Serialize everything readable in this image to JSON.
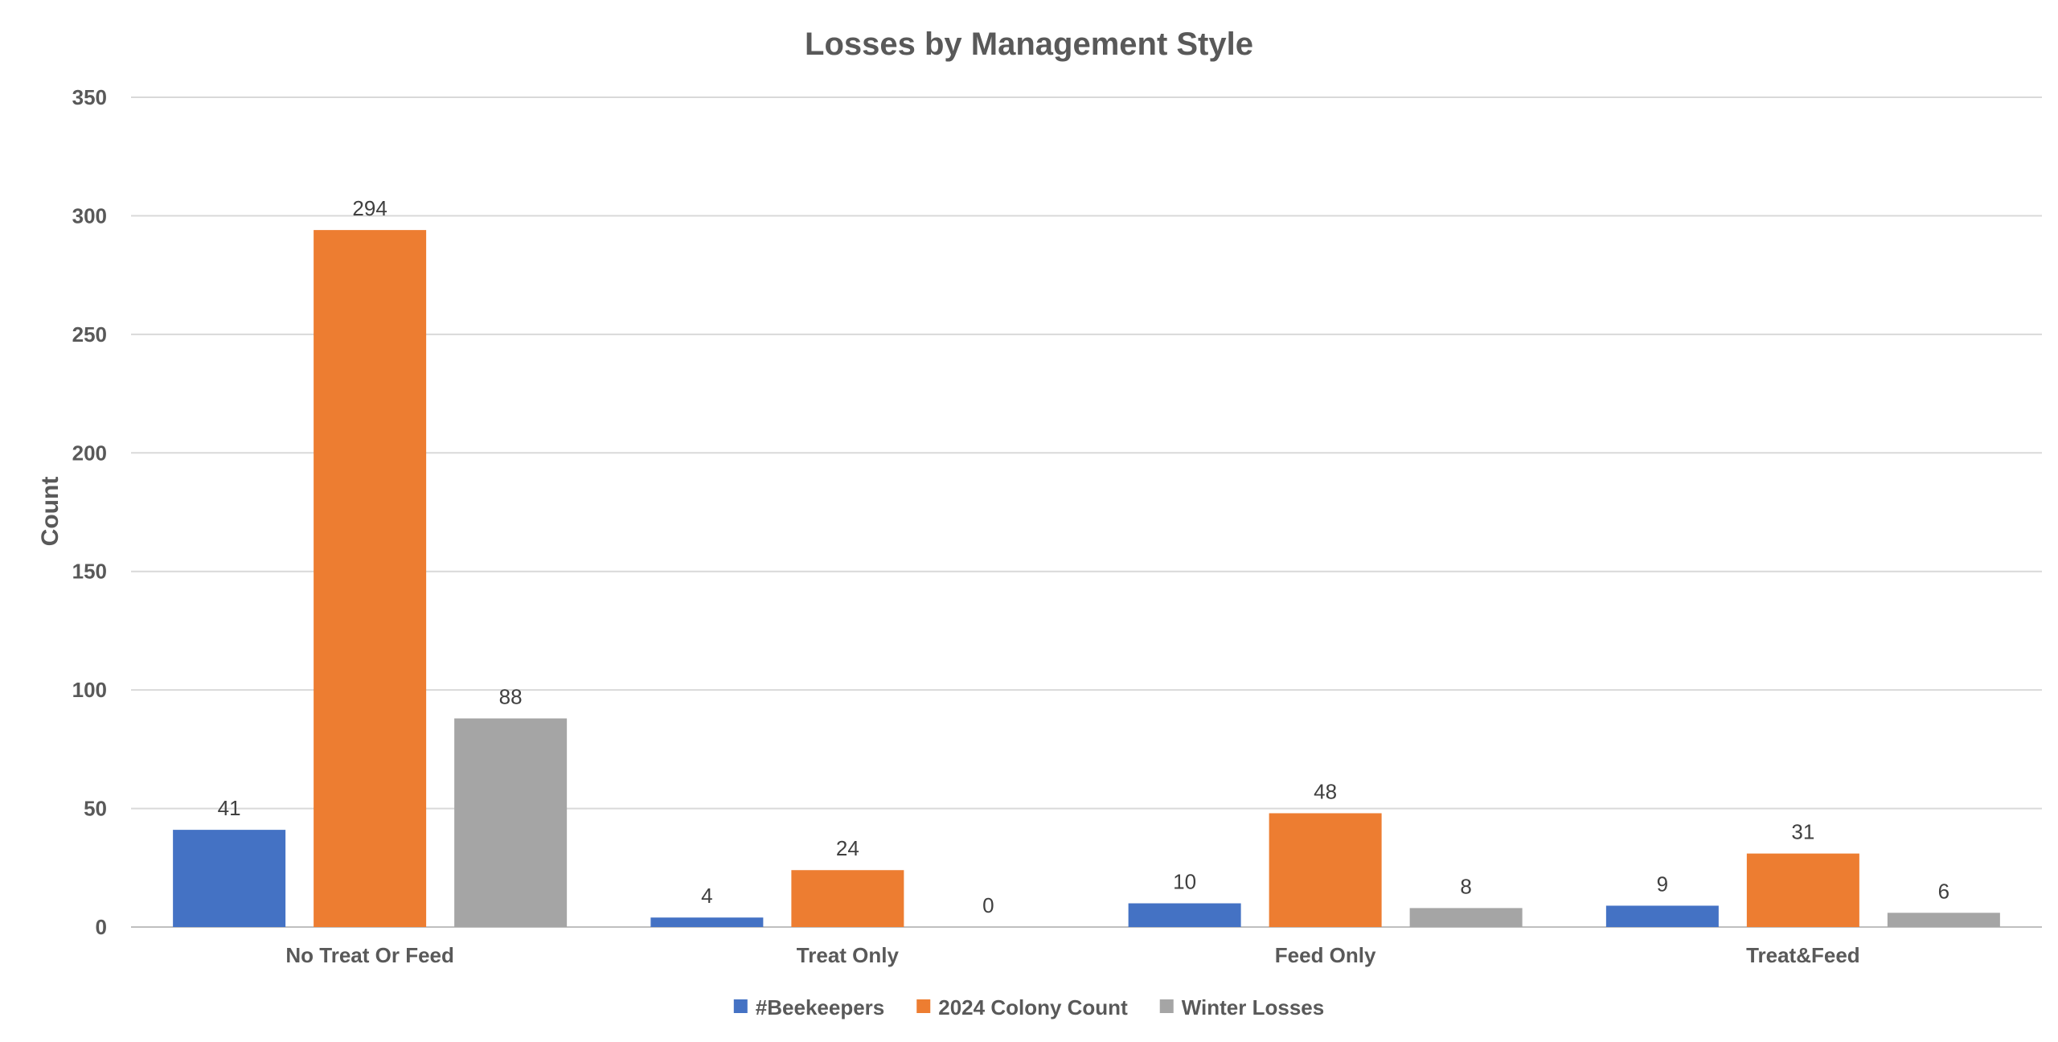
{
  "chart_data": {
    "type": "bar",
    "title": "Losses by Management Style",
    "xlabel": "",
    "ylabel": "Count",
    "ylim": [
      0,
      350
    ],
    "yticks": [
      0,
      50,
      100,
      150,
      200,
      250,
      300,
      350
    ],
    "categories": [
      "No Treat Or Feed",
      "Treat Only",
      "Feed Only",
      "Treat&Feed"
    ],
    "series": [
      {
        "name": "#Beekeepers",
        "color": "#4472c4",
        "values": [
          41,
          4,
          10,
          9
        ]
      },
      {
        "name": "2024 Colony Count",
        "color": "#ed7d31",
        "values": [
          294,
          24,
          48,
          31
        ]
      },
      {
        "name": "Winter Losses",
        "color": "#a5a5a5",
        "values": [
          88,
          0,
          8,
          6
        ]
      }
    ],
    "data_labels": true,
    "grid": true,
    "legend": "bottom"
  }
}
